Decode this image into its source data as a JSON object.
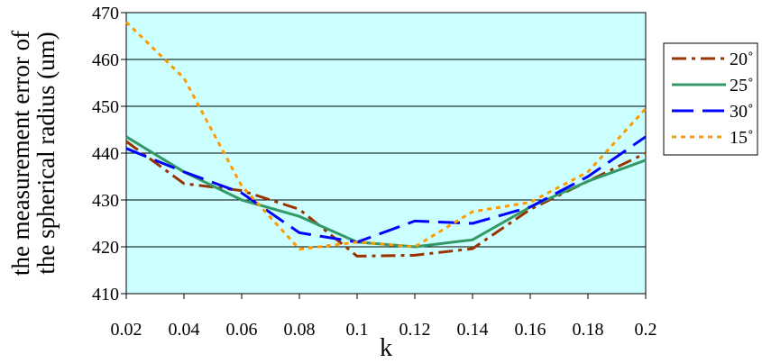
{
  "chart_data": {
    "type": "line",
    "x": [
      0.02,
      0.04,
      0.06,
      0.08,
      0.1,
      0.12,
      0.14,
      0.16,
      0.18,
      0.2
    ],
    "x_ticks": [
      "0.02",
      "0.04",
      "0.06",
      "0.08",
      "0.1",
      "0.12",
      "0.14",
      "0.16",
      "0.18",
      "0.2"
    ],
    "xlim": [
      0.02,
      0.2
    ],
    "xlabel": "k",
    "y_ticks": [
      410,
      420,
      430,
      440,
      450,
      460,
      470
    ],
    "ylim": [
      410,
      470
    ],
    "ylabel_lines": [
      "the measurement error of",
      "the spherical radius (um)"
    ],
    "grid": "horizontal",
    "legend_position": "right",
    "plot_background": "#ccffff",
    "series": [
      {
        "name": "20˚",
        "color": "#993300",
        "style": "dash-dot",
        "values": [
          442.5,
          433.5,
          432,
          428,
          418,
          418.2,
          419.6,
          428,
          434,
          440
        ]
      },
      {
        "name": "25˚",
        "color": "#339966",
        "style": "solid",
        "values": [
          443.5,
          436,
          430,
          426.5,
          421,
          420,
          421.5,
          428.5,
          434,
          438.5
        ]
      },
      {
        "name": "30˚",
        "color": "#0000ff",
        "style": "dash",
        "values": [
          441,
          436,
          431.5,
          423,
          421,
          425.5,
          425,
          428.5,
          435,
          443.5
        ]
      },
      {
        "name": "15˚",
        "color": "#ff9900",
        "style": "dot",
        "values": [
          468,
          456,
          433,
          419.5,
          421,
          420,
          427.5,
          429.5,
          436,
          449.5
        ]
      }
    ]
  }
}
